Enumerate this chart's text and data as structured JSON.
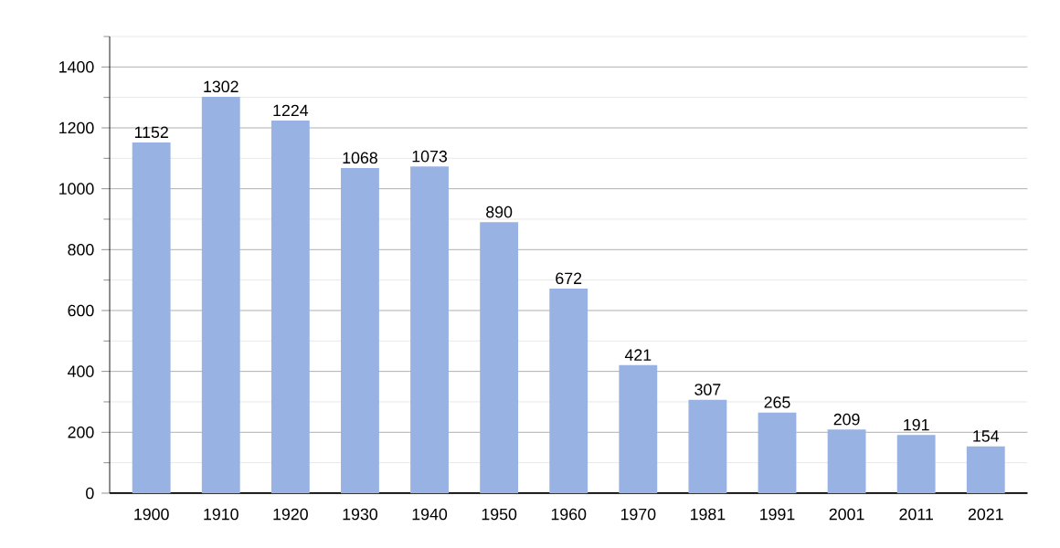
{
  "chart_data": {
    "type": "bar",
    "categories": [
      "1900",
      "1910",
      "1920",
      "1930",
      "1940",
      "1950",
      "1960",
      "1970",
      "1981",
      "1991",
      "2001",
      "2011",
      "2021"
    ],
    "values": [
      1152,
      1302,
      1224,
      1068,
      1073,
      890,
      672,
      421,
      307,
      265,
      209,
      191,
      154
    ],
    "color": "#98b3e3",
    "data_labels": true,
    "grid": "y",
    "ylim": [
      0,
      1500
    ],
    "yticks": [
      0,
      {
        "value": 100,
        "label": null
      },
      200,
      {
        "value": 300,
        "label": null
      },
      400,
      {
        "value": 500,
        "label": null
      },
      600,
      {
        "value": 700,
        "label": null
      },
      800,
      {
        "value": 900,
        "label": null
      },
      1000,
      {
        "value": 1100,
        "label": null
      },
      1200,
      {
        "value": 1300,
        "label": null
      },
      1400,
      {
        "value": 1500,
        "label": null
      }
    ]
  }
}
